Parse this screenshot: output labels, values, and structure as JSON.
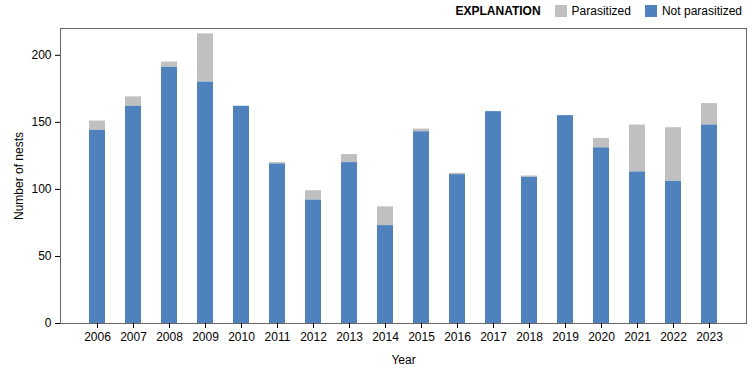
{
  "chart_data": {
    "type": "bar",
    "stacked": true,
    "x_label": "Year",
    "y_label": "Number of nests",
    "legend_title": "EXPLANATION",
    "legend": "top-right",
    "categories": [
      "2006",
      "2007",
      "2008",
      "2009",
      "2010",
      "2011",
      "2012",
      "2013",
      "2014",
      "2015",
      "2016",
      "2017",
      "2018",
      "2019",
      "2020",
      "2021",
      "2022",
      "2023"
    ],
    "series": [
      {
        "name": "Parasitized",
        "color": "#c0c0c0",
        "values": [
          7,
          7,
          4,
          36,
          0,
          1,
          7,
          6,
          14,
          2,
          1,
          0,
          1,
          0,
          7,
          35,
          40,
          16
        ]
      },
      {
        "name": "Not parasitized",
        "color": "#4f81bd",
        "values": [
          144,
          162,
          191,
          180,
          162,
          119,
          92,
          120,
          73,
          143,
          111,
          158,
          109,
          155,
          131,
          113,
          106,
          148
        ]
      }
    ],
    "ylim": [
      0,
      220
    ],
    "yticks": [
      0,
      50,
      100,
      150,
      200
    ],
    "grid": false
  }
}
